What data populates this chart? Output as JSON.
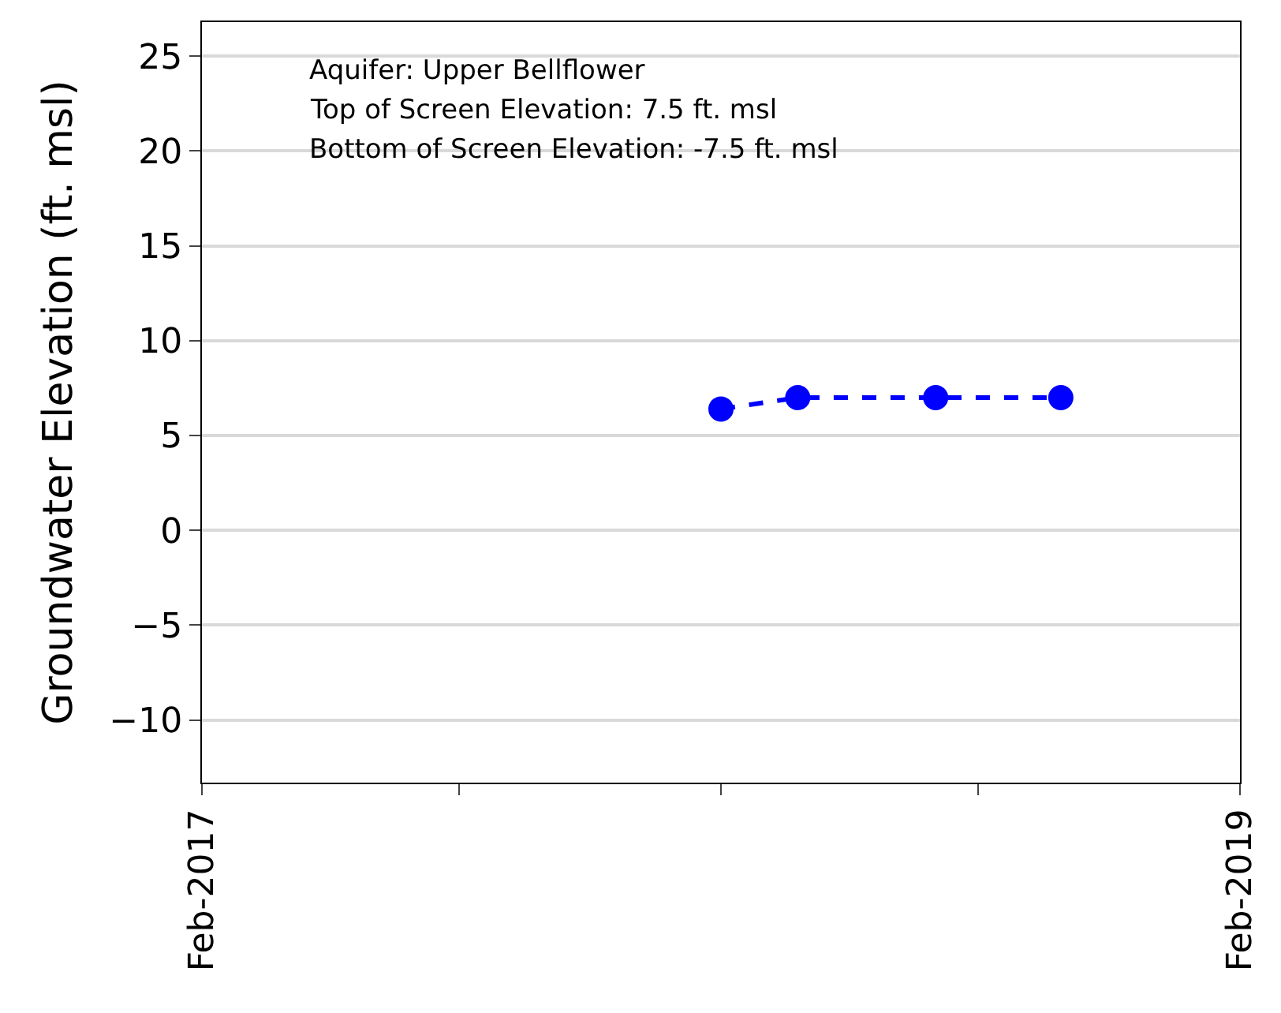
{
  "chart_data": {
    "type": "line",
    "ylabel": "Groundwater Elevation (ft. msl)",
    "x": [
      "2018-02-01",
      "2018-03-27",
      "2018-07-02",
      "2018-09-28"
    ],
    "series": [
      {
        "color": "#0000ff",
        "values": [
          6.4,
          7.0,
          7.0,
          7.0
        ]
      }
    ],
    "xlim": [
      "2017-02-01",
      "2019-02-01"
    ],
    "xticks": [
      {
        "value": "2017-02-01",
        "label": "Feb-2017"
      },
      {
        "value": "2017-08-01",
        "label": null
      },
      {
        "value": "2018-02-01",
        "label": null
      },
      {
        "value": "2018-08-01",
        "label": null
      },
      {
        "value": "2019-02-01",
        "label": "Feb-2019"
      }
    ],
    "ylim": [
      -13.3,
      26.8
    ],
    "yticks": [
      {
        "value": -10,
        "label": "−10"
      },
      {
        "value": -5,
        "label": "−5"
      },
      {
        "value": 0,
        "label": "0"
      },
      {
        "value": 5,
        "label": "5"
      },
      {
        "value": 10,
        "label": "10"
      },
      {
        "value": 15,
        "label": "15"
      },
      {
        "value": 20,
        "label": "20"
      },
      {
        "value": 25,
        "label": "25"
      }
    ],
    "annotations": [
      "Aquifer: Upper Bellflower",
      "Top of Screen Elevation: 7.5 ft. msl",
      "Bottom of Screen Elevation: -7.5 ft. msl"
    ],
    "grid": "y",
    "marker": "circle",
    "line_style": "dashed",
    "legend": false
  }
}
